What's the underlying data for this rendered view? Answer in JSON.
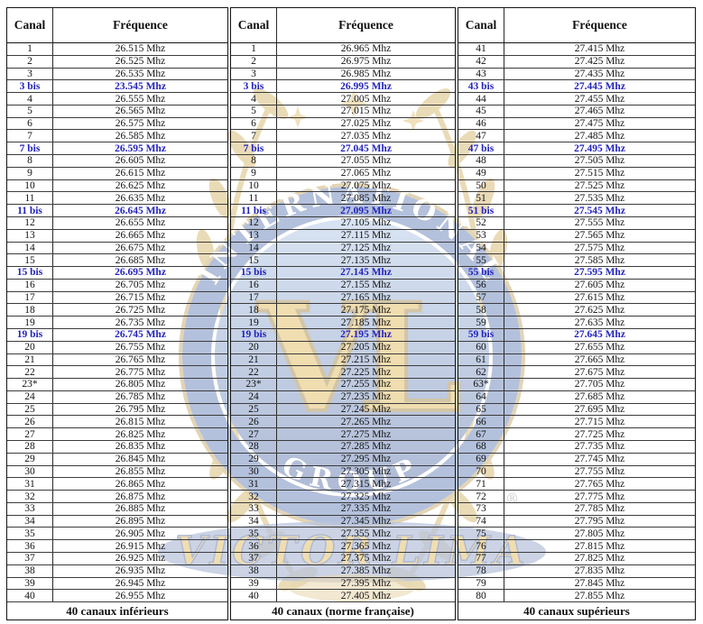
{
  "styles": {
    "bis_color": "#2222bd",
    "border_color": "#151515",
    "text_color": "#111111",
    "background": "#ffffff"
  },
  "watermark": {
    "ring_text_top": "INTERNATIONAL",
    "ring_text_bottom": "GROUP",
    "monogram": "VL",
    "banner_text": "VICTOR LIMA",
    "registered_mark": "®",
    "colors": {
      "gold": "#c9a243",
      "ring_blue": "#3d5fa5",
      "disc_blue": "#2e4d93",
      "text_white": "#ffffff"
    }
  },
  "tables": [
    {
      "header": {
        "canal": "Canal",
        "frequence": "Fréquence"
      },
      "footer": "40 canaux inférieurs",
      "rows": [
        {
          "c": "1",
          "f": "26.515 Mhz",
          "b": false
        },
        {
          "c": "2",
          "f": "26.525 Mhz",
          "b": false
        },
        {
          "c": "3",
          "f": "26.535 Mhz",
          "b": false
        },
        {
          "c": "3 bis",
          "f": "23.545 Mhz",
          "b": true
        },
        {
          "c": "4",
          "f": "26.555 Mhz",
          "b": false
        },
        {
          "c": "5",
          "f": "26.565 Mhz",
          "b": false
        },
        {
          "c": "6",
          "f": "26.575 Mhz",
          "b": false
        },
        {
          "c": "7",
          "f": "26.585 Mhz",
          "b": false
        },
        {
          "c": "7 bis",
          "f": "26.595 Mhz",
          "b": true
        },
        {
          "c": "8",
          "f": "26.605 Mhz",
          "b": false
        },
        {
          "c": "9",
          "f": "26.615 Mhz",
          "b": false
        },
        {
          "c": "10",
          "f": "26.625 Mhz",
          "b": false
        },
        {
          "c": "11",
          "f": "26.635 Mhz",
          "b": false
        },
        {
          "c": "11 bis",
          "f": "26.645 Mhz",
          "b": true
        },
        {
          "c": "12",
          "f": "26.655 Mhz",
          "b": false
        },
        {
          "c": "13",
          "f": "26.665 Mhz",
          "b": false
        },
        {
          "c": "14",
          "f": "26.675 Mhz",
          "b": false
        },
        {
          "c": "15",
          "f": "26.685 Mhz",
          "b": false
        },
        {
          "c": "15 bis",
          "f": "26.695 Mhz",
          "b": true
        },
        {
          "c": "16",
          "f": "26.705 Mhz",
          "b": false
        },
        {
          "c": "17",
          "f": "26.715 Mhz",
          "b": false
        },
        {
          "c": "18",
          "f": "26.725 Mhz",
          "b": false
        },
        {
          "c": "19",
          "f": "26.735 Mhz",
          "b": false
        },
        {
          "c": "19 bis",
          "f": "26.745 Mhz",
          "b": true
        },
        {
          "c": "20",
          "f": "26.755 Mhz",
          "b": false
        },
        {
          "c": "21",
          "f": "26.765 Mhz",
          "b": false
        },
        {
          "c": "22",
          "f": "26.775 Mhz",
          "b": false
        },
        {
          "c": "23*",
          "f": "26.805 Mhz",
          "b": false
        },
        {
          "c": "24",
          "f": "26.785 Mhz",
          "b": false
        },
        {
          "c": "25",
          "f": "26.795 Mhz",
          "b": false
        },
        {
          "c": "26",
          "f": "26.815 Mhz",
          "b": false
        },
        {
          "c": "27",
          "f": "26.825 Mhz",
          "b": false
        },
        {
          "c": "28",
          "f": "26.835 Mhz",
          "b": false
        },
        {
          "c": "29",
          "f": "26.845 Mhz",
          "b": false
        },
        {
          "c": "30",
          "f": "26.855 Mhz",
          "b": false
        },
        {
          "c": "31",
          "f": "26.865 Mhz",
          "b": false
        },
        {
          "c": "32",
          "f": "26.875 Mhz",
          "b": false
        },
        {
          "c": "33",
          "f": "26.885 Mhz",
          "b": false
        },
        {
          "c": "34",
          "f": "26.895 Mhz",
          "b": false
        },
        {
          "c": "35",
          "f": "26.905 Mhz",
          "b": false
        },
        {
          "c": "36",
          "f": "26.915 Mhz",
          "b": false
        },
        {
          "c": "37",
          "f": "26.925 Mhz",
          "b": false
        },
        {
          "c": "38",
          "f": "26.935 Mhz",
          "b": false
        },
        {
          "c": "39",
          "f": "26.945 Mhz",
          "b": false
        },
        {
          "c": "40",
          "f": "26.955 Mhz",
          "b": false
        }
      ]
    },
    {
      "header": {
        "canal": "Canal",
        "frequence": "Fréquence"
      },
      "footer": "40 canaux (norme française)",
      "rows": [
        {
          "c": "1",
          "f": "26.965 Mhz",
          "b": false
        },
        {
          "c": "2",
          "f": "26.975 Mhz",
          "b": false
        },
        {
          "c": "3",
          "f": "26.985 Mhz",
          "b": false
        },
        {
          "c": "3 bis",
          "f": "26.995 Mhz",
          "b": true
        },
        {
          "c": "4",
          "f": "27.005 Mhz",
          "b": false
        },
        {
          "c": "5",
          "f": "27.015 Mhz",
          "b": false
        },
        {
          "c": "6",
          "f": "27.025 Mhz",
          "b": false
        },
        {
          "c": "7",
          "f": "27.035 Mhz",
          "b": false
        },
        {
          "c": "7 bis",
          "f": "27.045 Mhz",
          "b": true
        },
        {
          "c": "8",
          "f": "27.055 Mhz",
          "b": false
        },
        {
          "c": "9",
          "f": "27.065 Mhz",
          "b": false
        },
        {
          "c": "10",
          "f": "27.075 Mhz",
          "b": false
        },
        {
          "c": "11",
          "f": "27.085 Mhz",
          "b": false
        },
        {
          "c": "11 bis",
          "f": "27.095 Mhz",
          "b": true
        },
        {
          "c": "12",
          "f": "27.105 Mhz",
          "b": false
        },
        {
          "c": "13",
          "f": "27.115 Mhz",
          "b": false
        },
        {
          "c": "14",
          "f": "27.125 Mhz",
          "b": false
        },
        {
          "c": "15",
          "f": "27.135 Mhz",
          "b": false
        },
        {
          "c": "15 bis",
          "f": "27.145 Mhz",
          "b": true
        },
        {
          "c": "16",
          "f": "27.155 Mhz",
          "b": false
        },
        {
          "c": "17",
          "f": "27.165 Mhz",
          "b": false
        },
        {
          "c": "18",
          "f": "27.175 Mhz",
          "b": false
        },
        {
          "c": "19",
          "f": "27.185 Mhz",
          "b": false
        },
        {
          "c": "19 bis",
          "f": "27.195 Mhz",
          "b": true
        },
        {
          "c": "20",
          "f": "27.205 Mhz",
          "b": false
        },
        {
          "c": "21",
          "f": "27.215 Mhz",
          "b": false
        },
        {
          "c": "22",
          "f": "27.225 Mhz",
          "b": false
        },
        {
          "c": "23*",
          "f": "27.255 Mhz",
          "b": false
        },
        {
          "c": "24",
          "f": "27.235 Mhz",
          "b": false
        },
        {
          "c": "25",
          "f": "27.245 Mhz",
          "b": false
        },
        {
          "c": "26",
          "f": "27.265 Mhz",
          "b": false
        },
        {
          "c": "27",
          "f": "27.275 Mhz",
          "b": false
        },
        {
          "c": "28",
          "f": "27.285 Mhz",
          "b": false
        },
        {
          "c": "29",
          "f": "27.295 Mhz",
          "b": false
        },
        {
          "c": "30",
          "f": "27.305 Mhz",
          "b": false
        },
        {
          "c": "31",
          "f": "27.315 Mhz",
          "b": false
        },
        {
          "c": "32",
          "f": "27.325 Mhz",
          "b": false
        },
        {
          "c": "33",
          "f": "27.335 Mhz",
          "b": false
        },
        {
          "c": "34",
          "f": "27.345 Mhz",
          "b": false
        },
        {
          "c": "35",
          "f": "27.355 Mhz",
          "b": false
        },
        {
          "c": "36",
          "f": "27.365 Mhz",
          "b": false
        },
        {
          "c": "37",
          "f": "27.375 Mhz",
          "b": false
        },
        {
          "c": "38",
          "f": "27.385 Mhz",
          "b": false
        },
        {
          "c": "39",
          "f": "27.395 Mhz",
          "b": false
        },
        {
          "c": "40",
          "f": "27.405 Mhz",
          "b": false
        }
      ]
    },
    {
      "header": {
        "canal": "Canal",
        "frequence": "Fréquence"
      },
      "footer": "40 canaux supérieurs",
      "rows": [
        {
          "c": "41",
          "f": "27.415 Mhz",
          "b": false
        },
        {
          "c": "42",
          "f": "27.425 Mhz",
          "b": false
        },
        {
          "c": "43",
          "f": "27.435 Mhz",
          "b": false
        },
        {
          "c": "43 bis",
          "f": "27.445 Mhz",
          "b": true
        },
        {
          "c": "44",
          "f": "27.455 Mhz",
          "b": false
        },
        {
          "c": "45",
          "f": "27.465 Mhz",
          "b": false
        },
        {
          "c": "46",
          "f": "27.475 Mhz",
          "b": false
        },
        {
          "c": "47",
          "f": "27.485 Mhz",
          "b": false
        },
        {
          "c": "47 bis",
          "f": "27.495 Mhz",
          "b": true
        },
        {
          "c": "48",
          "f": "27.505 Mhz",
          "b": false
        },
        {
          "c": "49",
          "f": "27.515 Mhz",
          "b": false
        },
        {
          "c": "50",
          "f": "27.525 Mhz",
          "b": false
        },
        {
          "c": "51",
          "f": "27.535 Mhz",
          "b": false
        },
        {
          "c": "51 bis",
          "f": "27.545 Mhz",
          "b": true
        },
        {
          "c": "52",
          "f": "27.555 Mhz",
          "b": false
        },
        {
          "c": "53",
          "f": "27.565 Mhz",
          "b": false
        },
        {
          "c": "54",
          "f": "27.575 Mhz",
          "b": false
        },
        {
          "c": "55",
          "f": "27.585 Mhz",
          "b": false
        },
        {
          "c": "55 bis",
          "f": "27.595 Mhz",
          "b": true
        },
        {
          "c": "56",
          "f": "27.605 Mhz",
          "b": false
        },
        {
          "c": "57",
          "f": "27.615 Mhz",
          "b": false
        },
        {
          "c": "58",
          "f": "27.625 Mhz",
          "b": false
        },
        {
          "c": "59",
          "f": "27.635 Mhz",
          "b": false
        },
        {
          "c": "59 bis",
          "f": "27.645 Mhz",
          "b": true
        },
        {
          "c": "60",
          "f": "27.655 Mhz",
          "b": false
        },
        {
          "c": "61",
          "f": "27.665 Mhz",
          "b": false
        },
        {
          "c": "62",
          "f": "27.675 Mhz",
          "b": false
        },
        {
          "c": "63*",
          "f": "27.705 Mhz",
          "b": false
        },
        {
          "c": "64",
          "f": "27.685 Mhz",
          "b": false
        },
        {
          "c": "65",
          "f": "27.695 Mhz",
          "b": false
        },
        {
          "c": "66",
          "f": "27.715 Mhz",
          "b": false
        },
        {
          "c": "67",
          "f": "27.725 Mhz",
          "b": false
        },
        {
          "c": "68",
          "f": "27.735 Mhz",
          "b": false
        },
        {
          "c": "69",
          "f": "27.745 Mhz",
          "b": false
        },
        {
          "c": "70",
          "f": "27.755 Mhz",
          "b": false
        },
        {
          "c": "71",
          "f": "27.765 Mhz",
          "b": false
        },
        {
          "c": "72",
          "f": "27.775 Mhz",
          "b": false
        },
        {
          "c": "73",
          "f": "27.785 Mhz",
          "b": false
        },
        {
          "c": "74",
          "f": "27.795 Mhz",
          "b": false
        },
        {
          "c": "75",
          "f": "27.805 Mhz",
          "b": false
        },
        {
          "c": "76",
          "f": "27.815 Mhz",
          "b": false
        },
        {
          "c": "77",
          "f": "27.825 Mhz",
          "b": false
        },
        {
          "c": "78",
          "f": "27.835 Mhz",
          "b": false
        },
        {
          "c": "79",
          "f": "27.845 Mhz",
          "b": false
        },
        {
          "c": "80",
          "f": "27.855 Mhz",
          "b": false
        }
      ]
    }
  ]
}
